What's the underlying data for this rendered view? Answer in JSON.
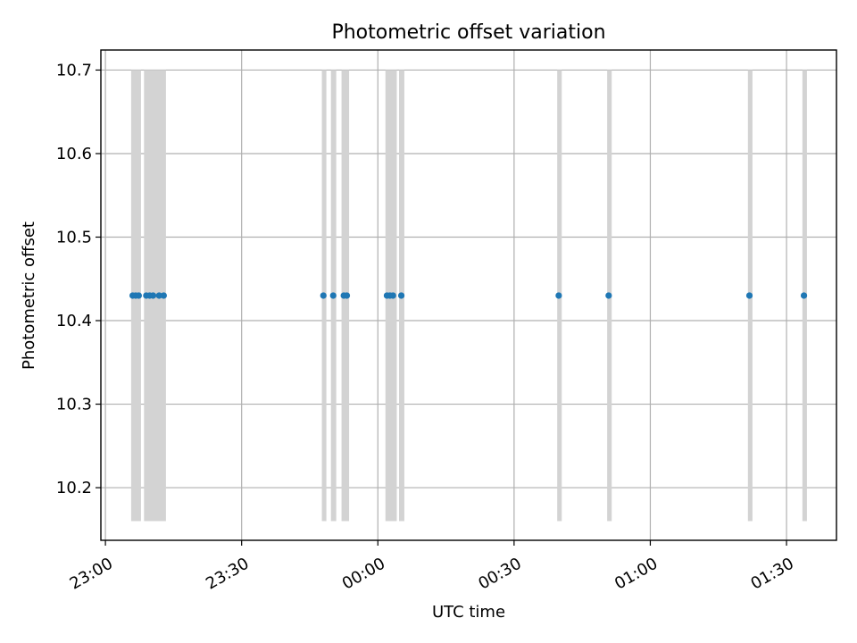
{
  "chart_data": {
    "type": "scatter",
    "title": "Photometric offset variation",
    "xlabel": "UTC time",
    "ylabel": "Photometric offset",
    "x_ticks": [
      "23:00",
      "23:30",
      "00:00",
      "00:30",
      "01:00",
      "01:30"
    ],
    "x_tick_times": [
      "2000-01-01T23:00",
      "2000-01-01T23:30",
      "2000-01-02T00:00",
      "2000-01-02T00:30",
      "2000-01-02T01:00",
      "2000-01-02T01:30"
    ],
    "xlim": [
      "2000-01-01T22:59",
      "2000-01-02T01:41"
    ],
    "y_ticks": [
      10.2,
      10.3,
      10.4,
      10.5,
      10.6,
      10.7
    ],
    "ylim": [
      10.137,
      10.724
    ],
    "grid": true,
    "series": [
      {
        "color": "#1f77b4",
        "points": [
          {
            "x": "2000-01-01T23:06:00",
            "y": 10.43
          },
          {
            "x": "2000-01-01T23:06:40",
            "y": 10.43
          },
          {
            "x": "2000-01-01T23:07:20",
            "y": 10.43
          },
          {
            "x": "2000-01-01T23:09:00",
            "y": 10.43
          },
          {
            "x": "2000-01-01T23:09:45",
            "y": 10.43
          },
          {
            "x": "2000-01-01T23:10:30",
            "y": 10.43
          },
          {
            "x": "2000-01-01T23:11:50",
            "y": 10.43
          },
          {
            "x": "2000-01-01T23:12:50",
            "y": 10.43
          },
          {
            "x": "2000-01-01T23:48:00",
            "y": 10.43
          },
          {
            "x": "2000-01-01T23:50:10",
            "y": 10.43
          },
          {
            "x": "2000-01-01T23:52:30",
            "y": 10.43
          },
          {
            "x": "2000-01-01T23:53:10",
            "y": 10.43
          },
          {
            "x": "2000-01-02T00:02:00",
            "y": 10.43
          },
          {
            "x": "2000-01-02T00:02:40",
            "y": 10.43
          },
          {
            "x": "2000-01-02T00:03:20",
            "y": 10.43
          },
          {
            "x": "2000-01-02T00:05:10",
            "y": 10.43
          },
          {
            "x": "2000-01-02T00:39:50",
            "y": 10.43
          },
          {
            "x": "2000-01-02T00:50:50",
            "y": 10.43
          },
          {
            "x": "2000-01-02T01:21:50",
            "y": 10.43
          },
          {
            "x": "2000-01-02T01:33:50",
            "y": 10.43
          }
        ]
      }
    ],
    "shaded_intervals": {
      "color": "#d3d3d3",
      "y_range": [
        10.16,
        10.7
      ],
      "spans": [
        [
          "2000-01-01T23:05:40",
          "2000-01-01T23:07:50"
        ],
        [
          "2000-01-01T23:08:30",
          "2000-01-01T23:13:20"
        ],
        [
          "2000-01-01T23:47:40",
          "2000-01-01T23:48:40"
        ],
        [
          "2000-01-01T23:49:40",
          "2000-01-01T23:50:50"
        ],
        [
          "2000-01-01T23:52:00",
          "2000-01-01T23:53:40"
        ],
        [
          "2000-01-02T00:01:40",
          "2000-01-02T00:04:10"
        ],
        [
          "2000-01-02T00:04:40",
          "2000-01-02T00:05:50"
        ],
        [
          "2000-01-02T00:39:30",
          "2000-01-02T00:40:30"
        ],
        [
          "2000-01-02T00:50:30",
          "2000-01-02T00:51:30"
        ],
        [
          "2000-01-02T01:21:30",
          "2000-01-02T01:22:30"
        ],
        [
          "2000-01-02T01:33:30",
          "2000-01-02T01:34:30"
        ]
      ]
    }
  }
}
